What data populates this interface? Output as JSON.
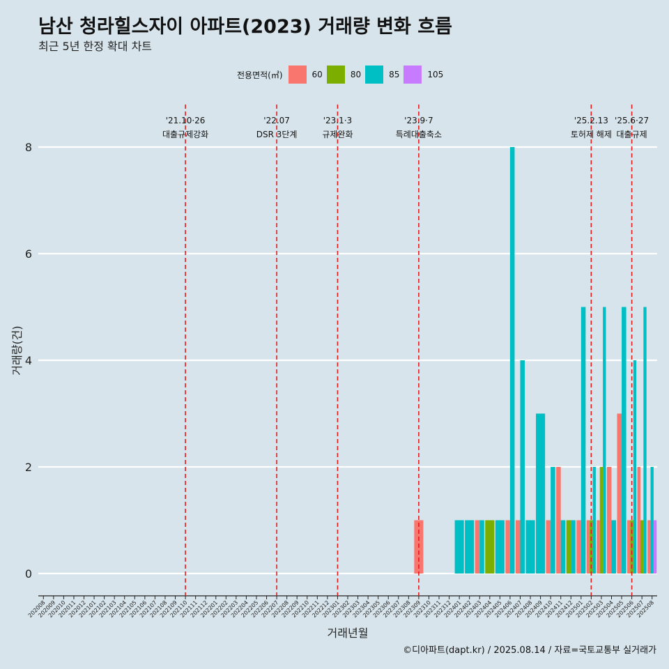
{
  "title": "남산 청라힐스자이 아파트(2023) 거래량 변화 흐름",
  "subtitle": "최근 5년 한정 확대 차트",
  "caption": "©디아파트(dapt.kr) / 2025.08.14 / 자료=국토교통부 실거래가",
  "legend": {
    "title": "전용면적(㎡)",
    "items": [
      {
        "label": "60",
        "color": "#f8766d"
      },
      {
        "label": "80",
        "color": "#7cae00"
      },
      {
        "label": "85",
        "color": "#00bfc4"
      },
      {
        "label": "105",
        "color": "#c77cff"
      }
    ]
  },
  "chart_data": {
    "type": "bar",
    "xlabel": "거래년월",
    "ylabel": "거래량(건)",
    "ylim": [
      0,
      8
    ],
    "yticks": [
      0,
      2,
      4,
      6,
      8
    ],
    "grid": true,
    "legend_position": "top",
    "categories": [
      "202008",
      "202009",
      "202010",
      "202011",
      "202012",
      "202101",
      "202102",
      "202103",
      "202104",
      "202105",
      "202106",
      "202107",
      "202108",
      "202109",
      "202110",
      "202111",
      "202112",
      "202201",
      "202202",
      "202203",
      "202204",
      "202205",
      "202206",
      "202207",
      "202208",
      "202209",
      "202210",
      "202211",
      "202212",
      "202301",
      "202302",
      "202303",
      "202304",
      "202305",
      "202306",
      "202307",
      "202308",
      "202309",
      "202310",
      "202311",
      "202312",
      "202401",
      "202402",
      "202403",
      "202404",
      "202405",
      "202406",
      "202407",
      "202408",
      "202409",
      "202410",
      "202411",
      "202412",
      "202501",
      "202502",
      "202503",
      "202504",
      "202505",
      "202506",
      "202507",
      "202508"
    ],
    "series": [
      {
        "name": "60",
        "color": "#f8766d",
        "points": [
          [
            "202309",
            1
          ],
          [
            "202403",
            1
          ],
          [
            "202406",
            1
          ],
          [
            "202407",
            1
          ],
          [
            "202410",
            1
          ],
          [
            "202411",
            2
          ],
          [
            "202501",
            1
          ],
          [
            "202502",
            1
          ],
          [
            "202503",
            1
          ],
          [
            "202504",
            2
          ],
          [
            "202505",
            3
          ],
          [
            "202506",
            1
          ],
          [
            "202507",
            2
          ],
          [
            "202508",
            1
          ]
        ]
      },
      {
        "name": "80",
        "color": "#7cae00",
        "points": [
          [
            "202404",
            1
          ],
          [
            "202412",
            1
          ],
          [
            "202502",
            1
          ],
          [
            "202503",
            2
          ],
          [
            "202506",
            1
          ],
          [
            "202507",
            1
          ]
        ]
      },
      {
        "name": "85",
        "color": "#00bfc4",
        "points": [
          [
            "202401",
            1
          ],
          [
            "202402",
            1
          ],
          [
            "202403",
            1
          ],
          [
            "202405",
            1
          ],
          [
            "202406",
            8
          ],
          [
            "202407",
            4
          ],
          [
            "202408",
            1
          ],
          [
            "202409",
            3
          ],
          [
            "202410",
            2
          ],
          [
            "202411",
            1
          ],
          [
            "202412",
            1
          ],
          [
            "202501",
            5
          ],
          [
            "202502",
            2
          ],
          [
            "202503",
            5
          ],
          [
            "202504",
            1
          ],
          [
            "202505",
            5
          ],
          [
            "202506",
            4
          ],
          [
            "202507",
            5
          ],
          [
            "202508",
            2
          ]
        ]
      },
      {
        "name": "105",
        "color": "#c77cff",
        "points": [
          [
            "202508",
            1
          ]
        ]
      }
    ],
    "annotations": [
      {
        "x": "202110",
        "label_top": "'21.10·26",
        "label_bottom": "대출규제강화"
      },
      {
        "x": "202207",
        "label_top": "'22.07",
        "label_bottom": "DSR 3단계"
      },
      {
        "x": "202301",
        "label_top": "'23.1·3",
        "label_bottom": "규제완화"
      },
      {
        "x": "202309",
        "label_top": "'23.9·7",
        "label_bottom": "특례대출축소"
      },
      {
        "x": "202502",
        "label_top": "'25.2.13",
        "label_bottom": "토허제 해제"
      },
      {
        "x": "202506",
        "label_top": "'25.6·27",
        "label_bottom": "대출규제"
      }
    ]
  }
}
